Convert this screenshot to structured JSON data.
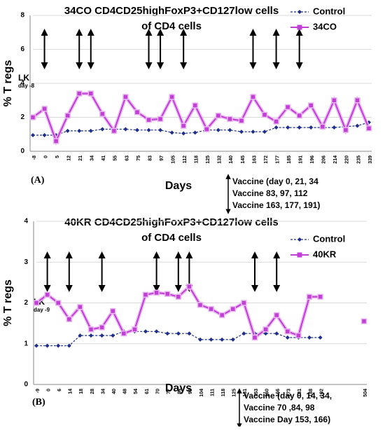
{
  "chart_data": [
    {
      "type": "line",
      "title": [
        "34CO CD4CD25highFoxP3+CD127low cells",
        "of CD4 cells"
      ],
      "ylabel": "% T regs",
      "xlabel": "Days",
      "panel_label": "(A)",
      "annotations": [
        "LK",
        "day -8"
      ],
      "vaccine_notes": [
        "Vaccine (day 0, 21, 34",
        "Vaccine 83, 97, 112",
        "Vaccine 163, 177, 191)"
      ],
      "categories": [
        "-8",
        "0",
        "5",
        "12",
        "21",
        "34",
        "41",
        "55",
        "63",
        "75",
        "83",
        "97",
        "105",
        "112",
        "118",
        "125",
        "132",
        "140",
        "145",
        "163",
        "172",
        "177",
        "185",
        "191",
        "196",
        "206",
        "214",
        "220",
        "235",
        "339"
      ],
      "ylim": [
        0,
        8
      ],
      "yticks": [
        0,
        2,
        4,
        6,
        8
      ],
      "grid": true,
      "legend": "upper right",
      "series": [
        {
          "name": "Control",
          "color": "#1f2f8a",
          "values": [
            0.95,
            0.95,
            0.95,
            1.2,
            1.2,
            1.2,
            1.3,
            1.3,
            1.3,
            1.25,
            1.25,
            1.25,
            1.1,
            1.05,
            1.1,
            1.25,
            1.25,
            1.25,
            1.15,
            1.15,
            1.15,
            1.4,
            1.4,
            1.4,
            1.4,
            1.4,
            1.4,
            1.45,
            1.5,
            1.7
          ]
        },
        {
          "name": "34CO",
          "color": "#c23fd6",
          "values": [
            2.0,
            2.5,
            0.6,
            2.1,
            3.4,
            3.4,
            2.2,
            1.2,
            3.2,
            2.3,
            1.85,
            1.9,
            3.2,
            1.5,
            2.7,
            1.3,
            2.1,
            1.9,
            1.8,
            3.2,
            2.15,
            1.75,
            2.6,
            2.1,
            2.7,
            1.45,
            3.0,
            1.25,
            3.0,
            1.35
          ]
        }
      ]
    },
    {
      "type": "line",
      "title": [
        "40KR CD4CD25highFoxP3+CD127low cells",
        "of CD4 cells"
      ],
      "ylabel": "% T regs",
      "xlabel": "Days",
      "panel_label": "(B)",
      "annotations": [
        "LK",
        "day -9"
      ],
      "vaccine_notes": [
        "Vaccine (day 0, 14, 34,",
        "Vaccine 70 ,84, 98",
        "Vaccine Day 153, 166)"
      ],
      "categories": [
        "-9",
        "0",
        "6",
        "14",
        "18",
        "28",
        "34",
        "40",
        "48",
        "54",
        "61",
        "70",
        "77",
        "84",
        "98",
        "104",
        "111",
        "118",
        "125",
        "131",
        "153",
        "160",
        "166",
        "173",
        "181",
        "188",
        "192",
        null,
        null,
        null,
        "504"
      ],
      "ylim": [
        0,
        4
      ],
      "yticks": [
        0,
        1,
        2,
        3,
        4
      ],
      "grid": true,
      "legend": "upper right",
      "series": [
        {
          "name": "Control",
          "color": "#1f2f8a",
          "values": [
            0.95,
            0.95,
            0.95,
            0.95,
            1.2,
            1.2,
            1.2,
            1.2,
            1.3,
            1.3,
            1.3,
            1.3,
            1.25,
            1.25,
            1.25,
            1.1,
            1.1,
            1.1,
            1.1,
            1.25,
            1.25,
            1.25,
            1.25,
            1.15,
            1.15,
            1.15,
            1.15,
            null,
            null,
            null,
            null
          ]
        },
        {
          "name": "40KR",
          "color": "#c23fd6",
          "values": [
            2.0,
            2.2,
            2.0,
            1.6,
            1.9,
            1.35,
            1.4,
            1.8,
            1.25,
            1.35,
            2.2,
            2.25,
            2.22,
            2.15,
            2.4,
            1.95,
            1.85,
            1.7,
            1.85,
            2.0,
            1.15,
            1.35,
            1.7,
            1.3,
            1.2,
            2.15,
            2.15,
            null,
            null,
            null,
            1.55
          ]
        }
      ]
    }
  ]
}
